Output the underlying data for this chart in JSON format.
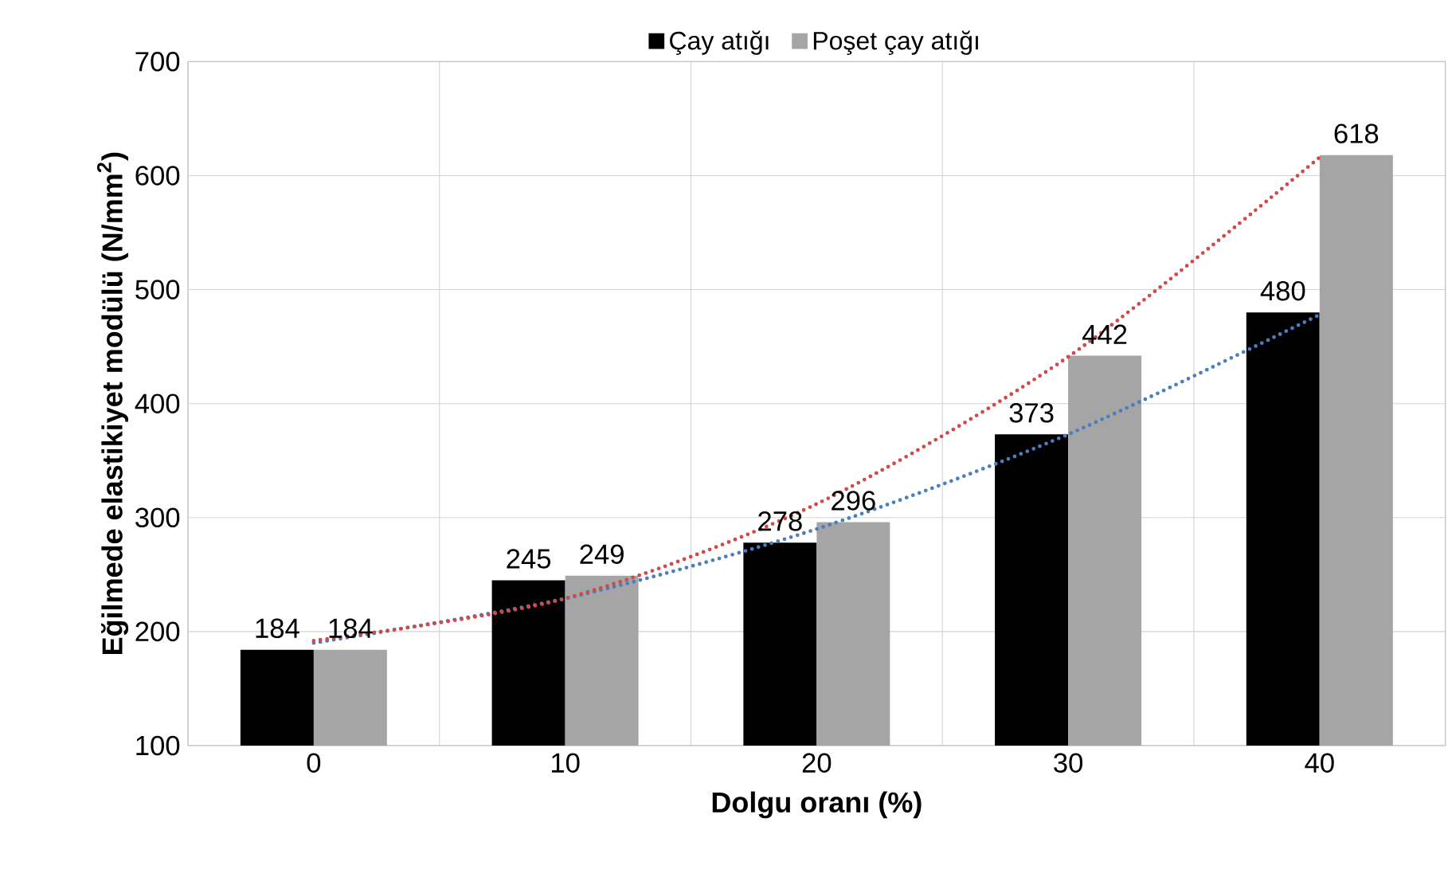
{
  "chart_data": {
    "type": "bar",
    "xlabel": "Dolgu oranı (%)",
    "ylabel": "Eğilmede elastikiyet modülü (N/mm$^{2}$)",
    "categories": [
      "0",
      "10",
      "20",
      "30",
      "40"
    ],
    "series": [
      {
        "name": "Çay atığı",
        "color": "#000000",
        "values": [
          184,
          245,
          278,
          373,
          480
        ],
        "value_labels": [
          "184",
          "245",
          "278",
          "373",
          "480"
        ]
      },
      {
        "name": "Poşet çay atığı",
        "color": "#a5a5a5",
        "values": [
          184,
          249,
          296,
          442,
          618
        ],
        "value_labels": [
          "184",
          "249",
          "296",
          "442",
          "618"
        ]
      },
      {
        "type": "line",
        "color": "#4a7ebf",
        "line_style": "dotted",
        "values": [
          190,
          229,
          290,
          373,
          478
        ]
      },
      {
        "type": "line",
        "color": "#d04a4a",
        "line_style": "dotted",
        "values": [
          192,
          229,
          312,
          441,
          616
        ]
      }
    ],
    "ylim": [
      100,
      700
    ],
    "yticks": [
      100,
      200,
      300,
      400,
      500,
      600,
      700
    ],
    "grid": true,
    "legend": "top"
  }
}
